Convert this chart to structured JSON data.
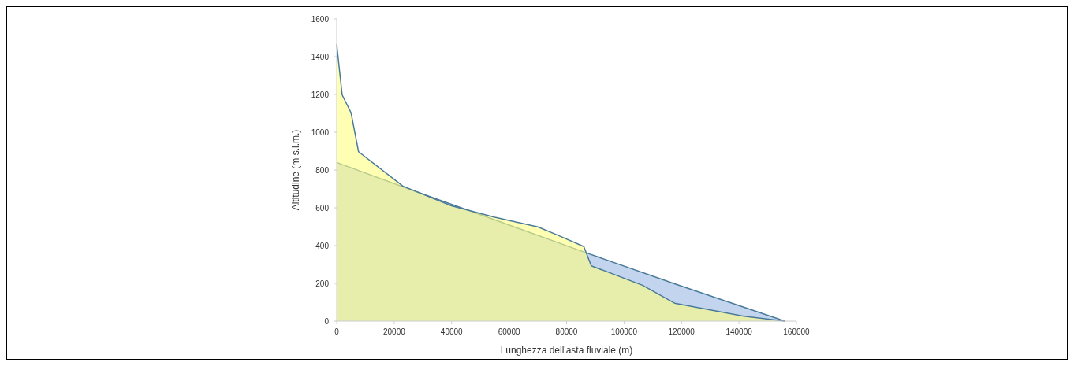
{
  "chart_data": {
    "type": "area",
    "xlabel": "Lunghezza dell'asta fluviale (m)",
    "ylabel": "Altitudine (m s.l.m.)",
    "xlim": [
      0,
      160000
    ],
    "xticks": [
      0,
      20000,
      40000,
      60000,
      80000,
      100000,
      120000,
      140000,
      160000
    ],
    "ylim": [
      0,
      1600
    ],
    "yticks": [
      0,
      200,
      400,
      600,
      800,
      1000,
      1200,
      1400,
      1600
    ],
    "grid": false,
    "series": [
      {
        "color": "#9bb9e2",
        "x": [
          0,
          25000,
          47000,
          86800,
          117600,
          156000
        ],
        "values": [
          840,
          700,
          580,
          362,
          198,
          0
        ]
      },
      {
        "color": "#ffff80",
        "x": [
          0,
          1900,
          5000,
          7600,
          23000,
          40000,
          55000,
          70000,
          76500,
          86000,
          88600,
          106400,
          117600,
          141700,
          156000
        ],
        "values": [
          1465,
          1198,
          1103,
          897,
          715,
          610,
          550,
          499,
          458,
          395,
          293,
          190,
          95,
          26,
          0
        ]
      }
    ]
  }
}
